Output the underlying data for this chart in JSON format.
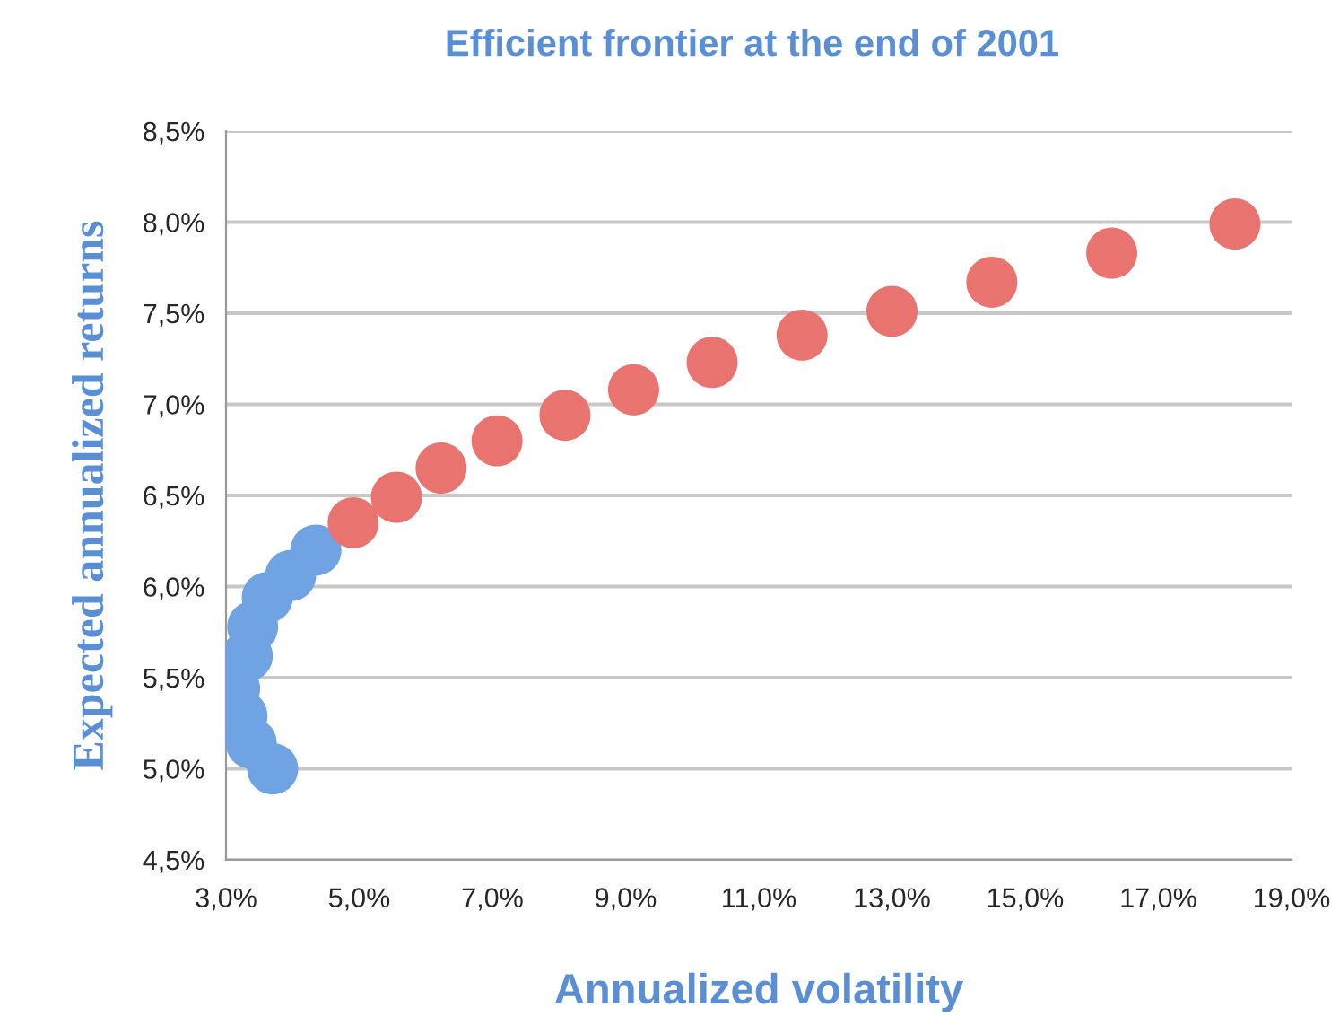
{
  "chart_data": {
    "type": "scatter",
    "title": "Efficient frontier at the end of 2001",
    "xlabel": "Annualized volatility",
    "ylabel": "Expected annualized returns",
    "x": [
      3.7,
      3.38,
      3.24,
      3.13,
      3.32,
      3.4,
      3.62,
      3.97,
      4.35,
      4.91,
      5.56,
      6.23,
      7.07,
      8.09,
      9.12,
      10.3,
      11.65,
      13.0,
      14.5,
      16.3,
      18.15
    ],
    "values": [
      5.0,
      5.14,
      5.29,
      5.44,
      5.62,
      5.78,
      5.94,
      6.06,
      6.2,
      6.35,
      6.49,
      6.65,
      6.8,
      6.94,
      7.08,
      7.23,
      7.38,
      7.51,
      7.67,
      7.83,
      7.99
    ],
    "colors": [
      "#6fa3e3",
      "#6fa3e3",
      "#6fa3e3",
      "#6fa3e3",
      "#6fa3e3",
      "#6fa3e3",
      "#6fa3e3",
      "#6fa3e3",
      "#6fa3e3",
      "#e8736f",
      "#e8736f",
      "#e8736f",
      "#e8736f",
      "#e8736f",
      "#e8736f",
      "#e8736f",
      "#e8736f",
      "#e8736f",
      "#e8736f",
      "#e8736f",
      "#e8736f"
    ],
    "xlim": [
      3.0,
      19.0
    ],
    "xticks": [
      {
        "value": 3,
        "label": "3,0%"
      },
      {
        "value": 5,
        "label": "5,0%"
      },
      {
        "value": 7,
        "label": "7,0%"
      },
      {
        "value": 9,
        "label": "9,0%"
      },
      {
        "value": 11,
        "label": "11,0%"
      },
      {
        "value": 13,
        "label": "13,0%"
      },
      {
        "value": 15,
        "label": "15,0%"
      },
      {
        "value": 17,
        "label": "17,0%"
      },
      {
        "value": 19,
        "label": "19,0%"
      }
    ],
    "ylim": [
      4.5,
      8.5
    ],
    "yticks": [
      {
        "value": 4.5,
        "label": "4,5%"
      },
      {
        "value": 5.0,
        "label": "5,0%"
      },
      {
        "value": 5.5,
        "label": "5,5%"
      },
      {
        "value": 6.0,
        "label": "6,0%"
      },
      {
        "value": 6.5,
        "label": "6,5%"
      },
      {
        "value": 7.0,
        "label": "7,0%"
      },
      {
        "value": 7.5,
        "label": "7,5%"
      },
      {
        "value": 8.0,
        "label": "8,0%"
      },
      {
        "value": 8.5,
        "label": "8,5%"
      }
    ],
    "grid": "y",
    "marker": "circle"
  }
}
